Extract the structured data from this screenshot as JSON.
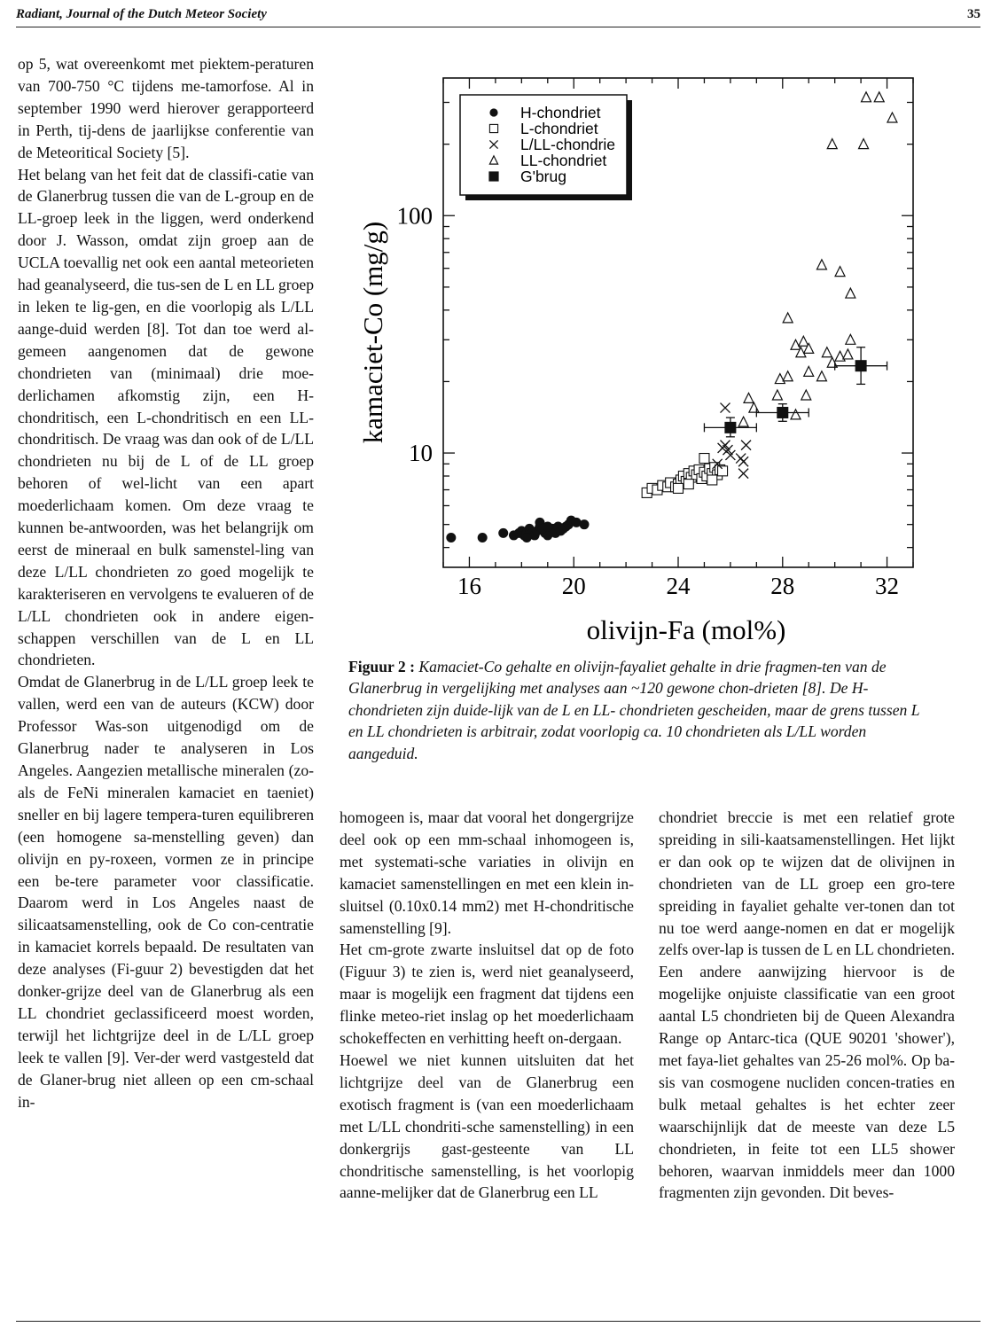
{
  "header": {
    "journal": "Radiant, Journal of the Dutch Meteor Society",
    "page": "35"
  },
  "col1": [
    "op 5, wat overeenkomt met piektem-peraturen van 700-750 °C tijdens me-tamorfose. Al in september 1990 werd hierover gerapporteerd in Perth, tij-dens de jaarlijkse conferentie van de Meteoritical Society [5].",
    "Het belang van het feit dat de classifi-catie van de Glanerbrug tussen die van de L-group en de LL-groep leek in the liggen, werd onderkend door J. Wasson, omdat zijn groep aan de UCLA toevallig net ook een aantal meteorieten had geanalyseerd, die tus-sen de L en LL groep in leken te lig-gen, en die voorlopig als L/LL aange-duid werden [8]. Tot dan toe werd al-gemeen aangenomen dat de gewone chondrieten van (minimaal) drie moe-derlichamen afkomstig zijn, een H-chondritisch, een L-chondritisch en een LL-chondritisch. De vraag was dan ook of de L/LL chondrieten nu bij de L of de LL groep behoren of wel-licht van een apart moederlichaam komen. Om deze vraag te kunnen be-antwoorden, was het belangrijk om eerst de mineraal en bulk samenstel-ling van deze L/LL chondrieten zo goed mogelijk te karakteriseren en vervolgens te evalueren of de L/LL chondrieten ook in andere eigen-schappen verschillen van de L en LL chondrieten.",
    "Omdat de Glanerbrug in de L/LL groep leek te vallen, werd een van de auteurs (KCW) door Professor Was-son uitgenodigd om de Glanerbrug nader te analyseren in Los Angeles. Aangezien metallische mineralen (zo-als de FeNi mineralen kamaciet en taeniet) sneller en bij lagere tempera-turen equilibreren (een homogene sa-menstelling geven) dan olivijn en py-roxeen, vormen ze in principe een be-tere parameter voor classificatie. Daarom werd in Los Angeles naast de silicaatsamenstelling, ook de Co con-centratie in kamaciet korrels bepaald. De resultaten van deze analyses (Fi-guur 2) bevestigden dat het donker-grijze deel van de Glanerbrug als een LL chondriet geclassificeerd moest worden, terwijl het lichtgrijze deel in de L/LL groep leek te vallen [9]. Ver-der werd vastgesteld dat de Glaner-brug niet alleen op een cm-schaal in-"
  ],
  "col2": [
    "homogeen is, maar dat vooral het dongergrijze deel ook op een mm-schaal inhomogeen is, met systemati-sche variaties in olivijn en kamaciet samenstellingen en met een klein in-sluitsel (0.10x0.14 mm2) met H-chondritische samenstelling [9].",
    "Het cm-grote zwarte insluitsel dat op de foto (Figuur 3) te zien is, werd niet geanalyseerd, maar is mogelijk een fragment dat tijdens een flinke meteo-riet inslag op het moederlichaam schokeffecten en verhitting heeft on-dergaan.",
    "Hoewel we niet kunnen uitsluiten dat het lichtgrijze deel van de Glanerbrug een exotisch fragment is (van een moederlichaam met L/LL chondriti-sche samenstelling) in een donkergrijs gast-gesteente van LL chondritische samenstelling, is het voorlopig aanne-melijker dat de Glanerbrug een LL"
  ],
  "col3": [
    "chondriet breccie is met een relatief grote spreiding in sili-kaatsamenstellingen. Het lijkt er dan ook op te wijzen dat de olivijnen in chondrieten van de LL groep een gro-tere spreiding in fayaliet gehalte ver-tonen dan tot nu toe werd aange-nomen en dat er mogelijk zelfs over-lap is tussen de L en LL chondrieten. Een andere aanwijzing hiervoor is de mogelijke onjuiste classificatie van een groot aantal L5 chondrieten bij de Queen Alexandra Range op Antarc-tica (QUE 90201 'shower'), met faya-liet gehaltes van 25-26 mol%. Op ba-sis van cosmogene nucliden concen-traties en bulk metaal gehaltes is het echter zeer waarschijnlijk dat de meeste van deze L5 chondrieten, in feite tot een LL5 shower behoren, waarvan inmiddels meer dan 1000 fragmenten zijn gevonden. Dit beves-"
  ],
  "caption": {
    "label": "Figuur 2 :",
    "text": "Kamaciet-Co gehalte en olivijn-fayaliet gehalte in drie fragmen-ten van de Glanerbrug in vergelijking met analyses aan ~120 gewone chon-drieten [8]. De H-chondrieten zijn duide-lijk van de L en LL- chondrieten gescheiden, maar de grens tussen L en LL chondrieten is arbitrair, zodat voorlopig ca. 10 chondrieten als L/LL worden aangeduid."
  },
  "chart_data": {
    "type": "scatter",
    "xlabel": "olivijn-Fa (mol%)",
    "ylabel": "kamaciet-Co (mg/g)",
    "xlim": [
      15,
      33
    ],
    "ylim": [
      3.3,
      380
    ],
    "yscale": "log",
    "xticks": [
      "16",
      "20",
      "24",
      "28",
      "32"
    ],
    "yticks": [
      "10",
      "100"
    ],
    "legend_position": "top-left",
    "series": [
      {
        "name": "H-chondriet",
        "marker": "filled-circle",
        "points": [
          [
            15.3,
            4.4
          ],
          [
            16.5,
            4.4
          ],
          [
            17.3,
            4.6
          ],
          [
            17.7,
            4.5
          ],
          [
            17.9,
            4.6
          ],
          [
            18.0,
            4.7
          ],
          [
            18.1,
            4.5
          ],
          [
            18.2,
            4.6
          ],
          [
            18.3,
            4.8
          ],
          [
            18.4,
            4.6
          ],
          [
            18.5,
            4.5
          ],
          [
            18.6,
            4.7
          ],
          [
            18.7,
            4.9
          ],
          [
            18.7,
            5.1
          ],
          [
            18.9,
            4.6
          ],
          [
            19.0,
            4.5
          ],
          [
            19.1,
            4.7
          ],
          [
            19.2,
            4.8
          ],
          [
            19.3,
            4.6
          ],
          [
            19.4,
            4.9
          ],
          [
            19.5,
            4.7
          ],
          [
            19.6,
            4.8
          ],
          [
            19.7,
            4.9
          ],
          [
            19.8,
            5.0
          ],
          [
            19.9,
            5.2
          ],
          [
            20.1,
            5.1
          ],
          [
            20.4,
            5.0
          ],
          [
            18.2,
            4.4
          ],
          [
            18.8,
            4.8
          ],
          [
            19.0,
            4.9
          ]
        ]
      },
      {
        "name": "L-chondriet",
        "marker": "open-square",
        "points": [
          [
            22.8,
            6.8
          ],
          [
            23.0,
            7.1
          ],
          [
            23.2,
            7.0
          ],
          [
            23.4,
            7.3
          ],
          [
            23.6,
            7.2
          ],
          [
            23.7,
            7.5
          ],
          [
            23.9,
            7.2
          ],
          [
            24.0,
            7.4
          ],
          [
            24.1,
            7.7
          ],
          [
            24.2,
            8.0
          ],
          [
            24.3,
            7.6
          ],
          [
            24.4,
            8.2
          ],
          [
            24.5,
            7.9
          ],
          [
            24.6,
            8.4
          ],
          [
            24.7,
            8.1
          ],
          [
            24.8,
            8.5
          ],
          [
            24.9,
            7.8
          ],
          [
            25.0,
            8.3
          ],
          [
            25.1,
            8.0
          ],
          [
            25.2,
            8.6
          ],
          [
            25.3,
            8.2
          ],
          [
            25.4,
            8.7
          ],
          [
            25.5,
            8.1
          ],
          [
            25.6,
            8.5
          ],
          [
            25.7,
            8.4
          ],
          [
            24.4,
            7.4
          ],
          [
            25.0,
            9.5
          ],
          [
            25.3,
            7.7
          ],
          [
            24.0,
            7.1
          ]
        ]
      },
      {
        "name": "L/LL-chondrie",
        "marker": "cross",
        "points": [
          [
            25.8,
            15.5
          ],
          [
            25.7,
            10.5
          ],
          [
            25.9,
            10.3
          ],
          [
            26.0,
            9.8
          ],
          [
            26.4,
            9.5
          ],
          [
            26.6,
            10.8
          ],
          [
            26.5,
            9.2
          ],
          [
            26.5,
            8.2
          ],
          [
            25.5,
            9.0
          ],
          [
            25.8,
            10.8
          ]
        ]
      },
      {
        "name": "LL-chondriet",
        "marker": "open-triangle",
        "points": [
          [
            26.5,
            13.5
          ],
          [
            26.7,
            17.0
          ],
          [
            26.9,
            15.5
          ],
          [
            27.8,
            17.5
          ],
          [
            27.9,
            20.5
          ],
          [
            28.2,
            21.0
          ],
          [
            28.5,
            14.5
          ],
          [
            28.2,
            37.0
          ],
          [
            28.5,
            28.5
          ],
          [
            28.7,
            26.5
          ],
          [
            28.8,
            29.5
          ],
          [
            28.9,
            17.5
          ],
          [
            29.0,
            22.0
          ],
          [
            29.0,
            27.5
          ],
          [
            29.5,
            21.0
          ],
          [
            29.7,
            26.5
          ],
          [
            29.9,
            24.0
          ],
          [
            30.2,
            25.5
          ],
          [
            30.5,
            26.0
          ],
          [
            30.6,
            30.0
          ],
          [
            29.5,
            62.0
          ],
          [
            30.2,
            58.0
          ],
          [
            30.6,
            47.0
          ],
          [
            29.9,
            200.0
          ],
          [
            31.1,
            200.0
          ],
          [
            31.2,
            315.0
          ],
          [
            31.7,
            315.0
          ],
          [
            32.2,
            258.0
          ]
        ]
      },
      {
        "name": "G'brug",
        "marker": "filled-square",
        "points": [
          [
            26.0,
            12.8
          ],
          [
            28.0,
            14.8
          ],
          [
            31.0,
            23.3
          ]
        ],
        "xerr": [
          1.0,
          1.0,
          1.0
        ],
        "yerr": [
          [
            11.7,
            14.1
          ],
          [
            13.6,
            16.1
          ],
          [
            19.5,
            27.9
          ]
        ]
      }
    ]
  }
}
